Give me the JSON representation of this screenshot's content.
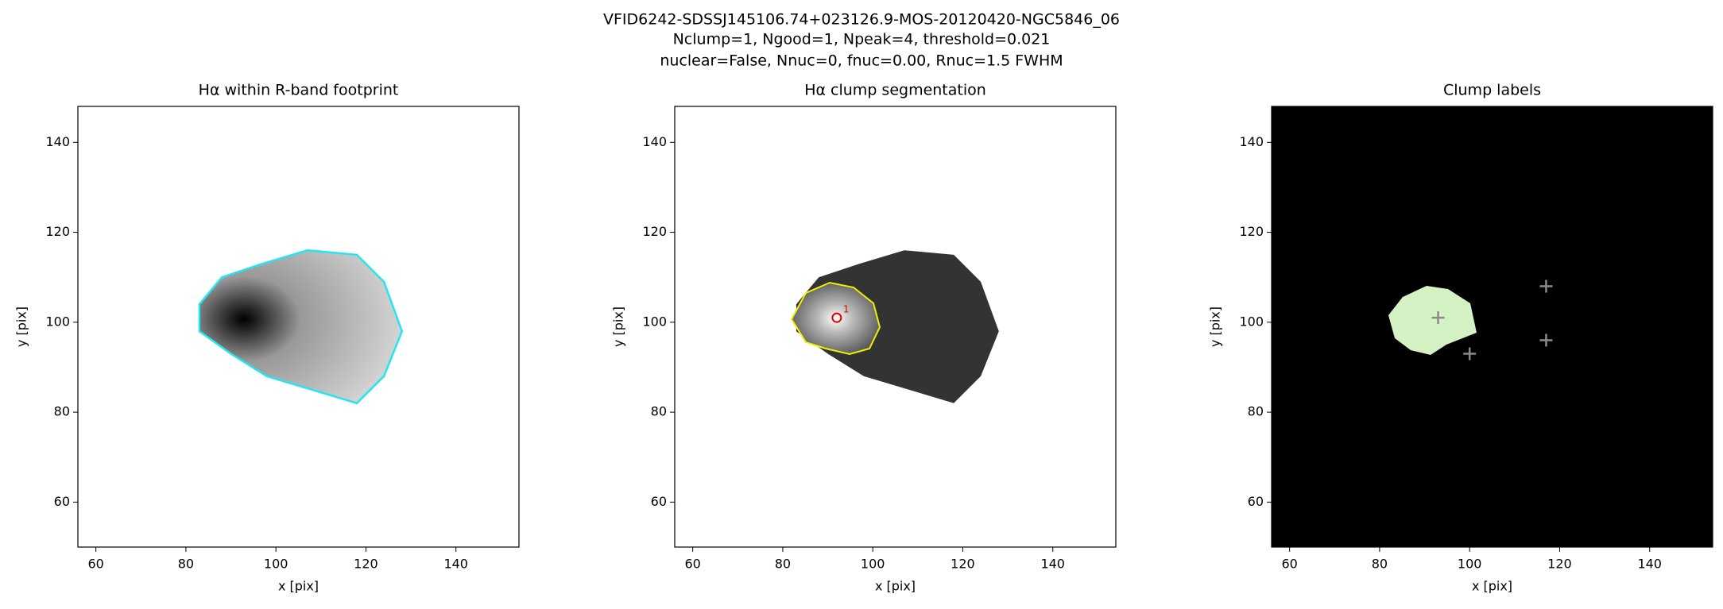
{
  "figure": {
    "title_lines": [
      "VFID6242-SDSSJ145106.74+023126.9-MOS-20120420-NGC5846_06",
      "Nclump=1, Ngood=1, Npeak=4, threshold=0.021",
      "nuclear=False, Nnuc=0, fnuc=0.00, Rnuc=1.5 FWHM"
    ]
  },
  "chart_data": [
    {
      "type": "image",
      "title": "Hα within R-band footprint",
      "x_label": "x [pix]",
      "y_label": "y [pix]",
      "xlim": [
        56,
        154
      ],
      "ylim": [
        50,
        148
      ],
      "xticks": [
        60,
        80,
        100,
        120,
        140
      ],
      "yticks": [
        60,
        80,
        100,
        120,
        140
      ]
    },
    {
      "type": "image",
      "title": "Hα clump segmentation",
      "x_label": "x [pix]",
      "y_label": "y [pix]",
      "xlim": [
        56,
        154
      ],
      "ylim": [
        50,
        148
      ],
      "xticks": [
        60,
        80,
        100,
        120,
        140
      ],
      "yticks": [
        60,
        80,
        100,
        120,
        140
      ],
      "markers": {
        "shape": "circle",
        "color": "#e00000",
        "x": [
          92
        ],
        "y": [
          101
        ],
        "labels": [
          "1"
        ]
      }
    },
    {
      "type": "image",
      "title": "Clump labels",
      "x_label": "x [pix]",
      "y_label": "y [pix]",
      "xlim": [
        56,
        154
      ],
      "ylim": [
        50,
        148
      ],
      "xticks": [
        60,
        80,
        100,
        120,
        140
      ],
      "yticks": [
        60,
        80,
        100,
        120,
        140
      ],
      "markers": {
        "shape": "plus",
        "color": "#8a8a8a",
        "x": [
          93,
          117,
          100,
          117
        ],
        "y": [
          101,
          108,
          93,
          96
        ]
      }
    }
  ]
}
